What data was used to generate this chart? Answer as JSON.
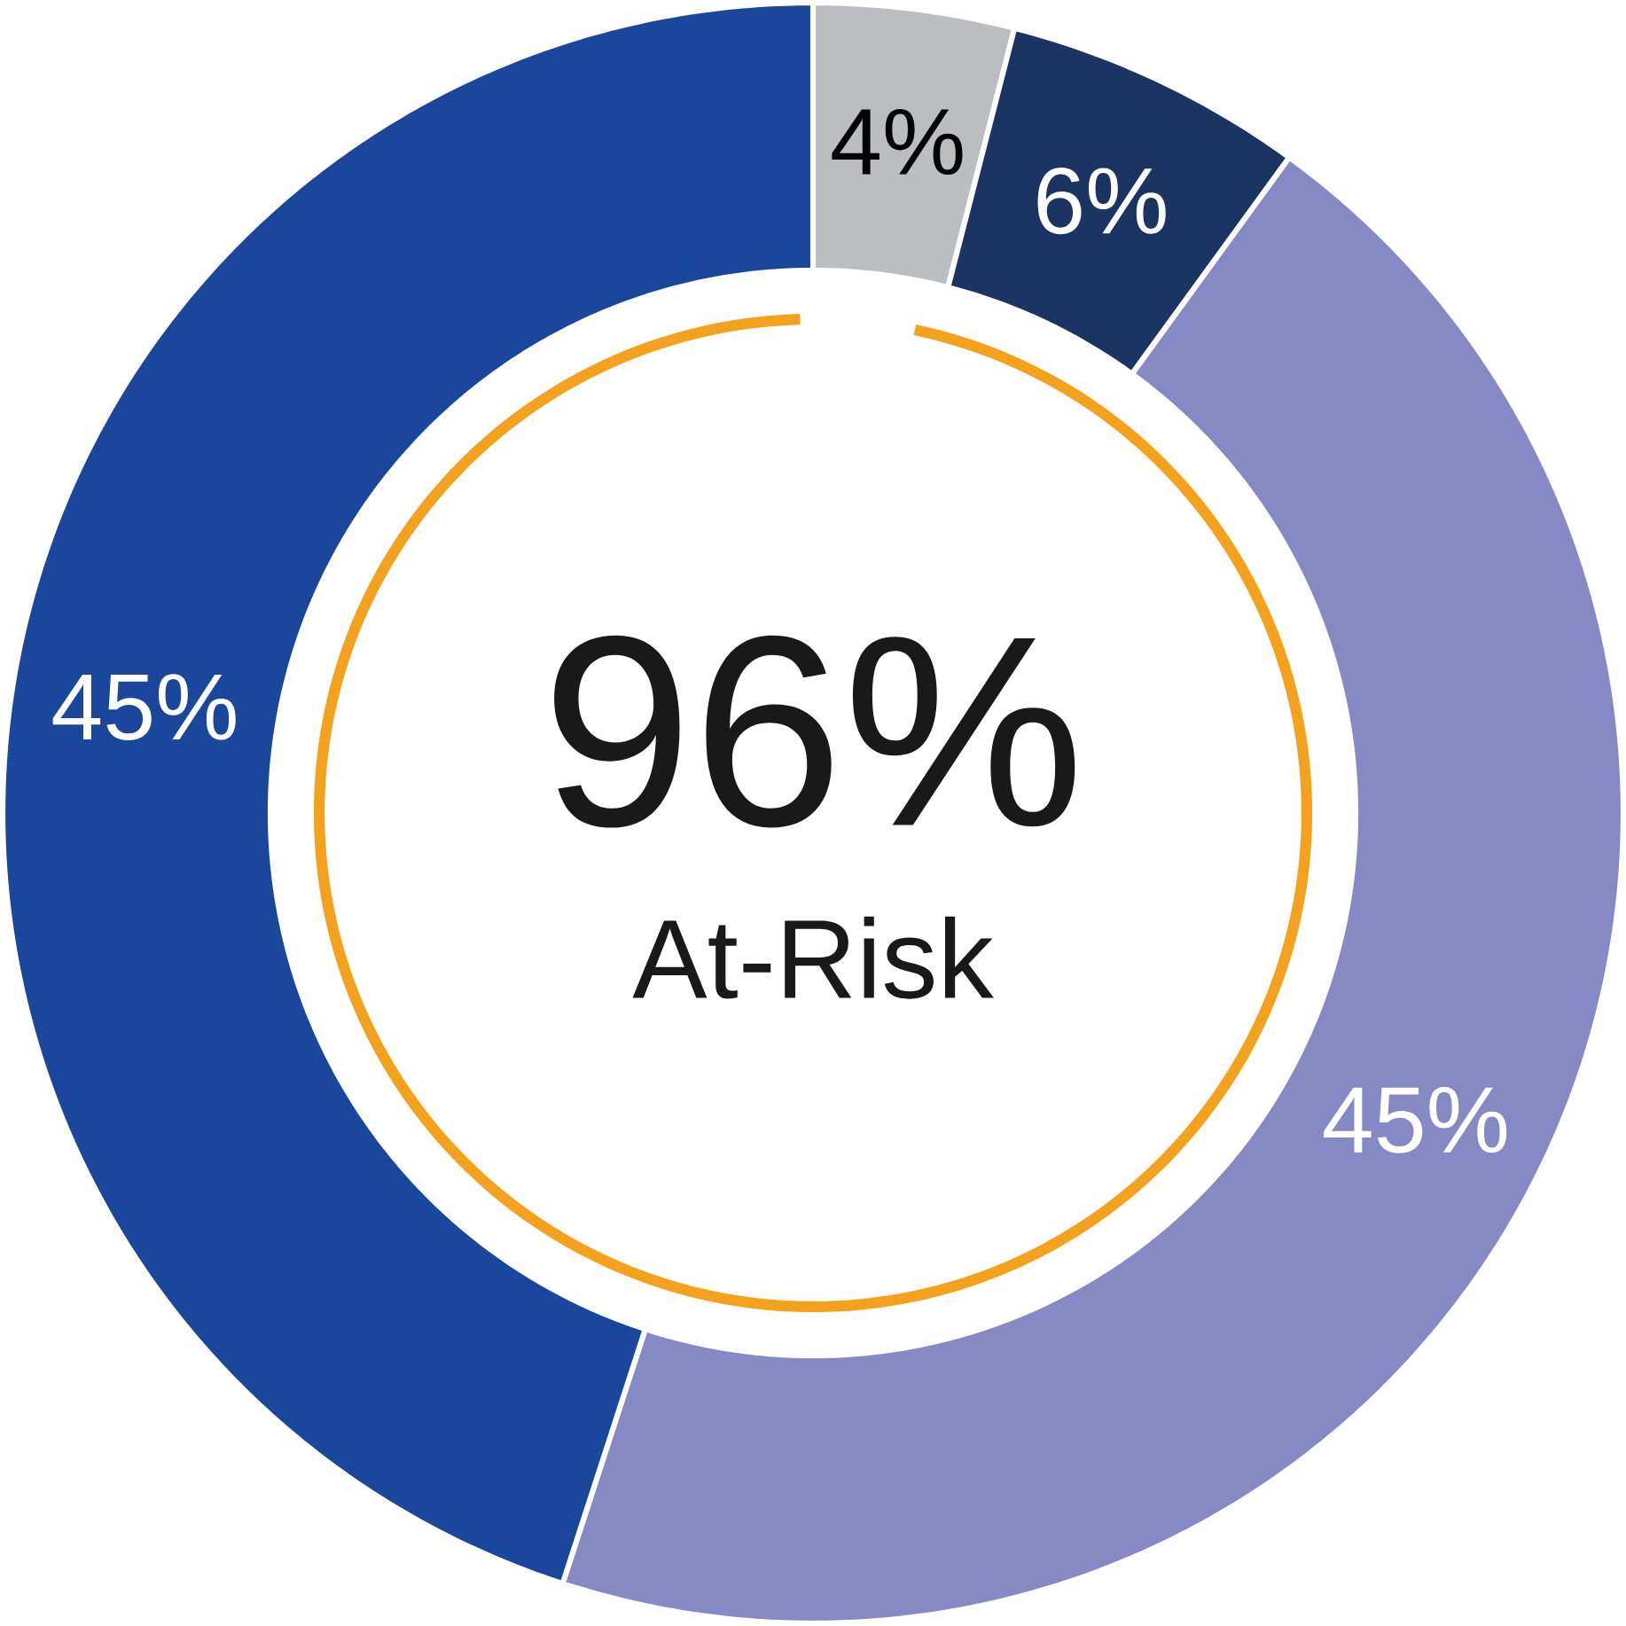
{
  "chart_data": {
    "type": "donut",
    "categories": [
      null,
      null,
      null,
      null
    ],
    "values": [
      4,
      6,
      45,
      45
    ],
    "colors": [
      "#bcbdc0",
      "#1b3461",
      "#8589c4",
      "#1a469c"
    ],
    "value_labels": [
      "4%",
      "6%",
      "45%",
      "45%"
    ],
    "annotations": [
      "96%",
      "At-Risk"
    ]
  }
}
